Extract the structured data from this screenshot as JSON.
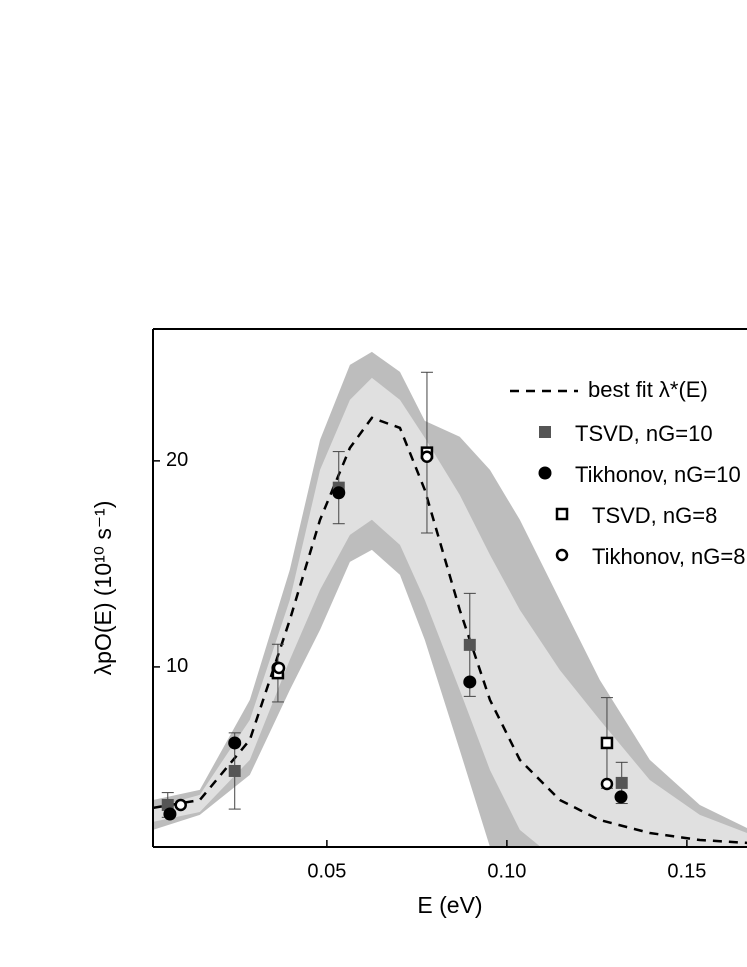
{
  "chart_data": {
    "type": "scatter",
    "x_label": "E  (eV)",
    "y_label": "λpO(E)  (10¹⁰ s⁻¹)",
    "xlim": [
      0.0017,
      0.1667
    ],
    "ylim": [
      1.26,
      26.4
    ],
    "xticks": [
      0.05,
      {
        "value": 0.1,
        "label": "0.10"
      },
      0.15
    ],
    "yticks": [
      10,
      20
    ],
    "bands": [
      {
        "color": "#bdbdbd",
        "x": [
          0.0017,
          0.0147,
          0.0286,
          0.0397,
          0.0481,
          0.0564,
          0.0625,
          0.0703,
          0.0772,
          0.0869,
          0.0953,
          0.1036,
          0.1147,
          0.1258,
          0.1397,
          0.1536,
          0.1667
        ],
        "upper": [
          3.54,
          4.03,
          8.4,
          14.71,
          21.02,
          24.66,
          25.29,
          24.32,
          21.94,
          21.17,
          19.56,
          17.14,
          13.25,
          9.37,
          5.49,
          3.3,
          2.18
        ],
        "lower": [
          2.09,
          2.82,
          4.76,
          8.88,
          11.8,
          15.1,
          15.68,
          14.47,
          11.31,
          5.97,
          1.26,
          0,
          0,
          0,
          0,
          0,
          0
        ]
      },
      {
        "color": "#e0e0e0",
        "x": [
          0.0017,
          0.0147,
          0.0286,
          0.0397,
          0.0481,
          0.0564,
          0.0625,
          0.0703,
          0.0772,
          0.0869,
          0.0953,
          0.1036,
          0.1147,
          0.1258,
          0.1397,
          0.1536,
          0.1667
        ],
        "upper": [
          3.16,
          3.79,
          7.43,
          13.25,
          19.56,
          22.96,
          24.03,
          22.96,
          21.12,
          18.35,
          15.44,
          12.77,
          9.85,
          7.43,
          4.51,
          2.82,
          1.94
        ],
        "lower": [
          2.48,
          2.96,
          5.49,
          10.34,
          13.74,
          16.41,
          17.14,
          15.92,
          13.25,
          8.88,
          5.0,
          2.09,
          0.5,
          0,
          0,
          0,
          0
        ]
      }
    ],
    "fit": {
      "name": "best fit λ*(E)",
      "color": "#000000",
      "x": [
        0.0017,
        0.0147,
        0.0286,
        0.0397,
        0.0481,
        0.0564,
        0.0625,
        0.0703,
        0.0772,
        0.0869,
        0.0953,
        0.1036,
        0.1147,
        0.1258,
        0.1397,
        0.1536,
        0.1667
      ],
      "values": [
        3.16,
        3.54,
        6.46,
        12.28,
        17.14,
        20.63,
        22.09,
        21.6,
        18.59,
        12.77,
        8.4,
        5.49,
        3.54,
        2.57,
        1.94,
        1.6,
        1.46
      ]
    },
    "series": [
      {
        "name": "TSVD, nG=10",
        "color": "#555555",
        "marker": "square",
        "x": [
          0.0058,
          0.0244,
          0.0364,
          0.0533,
          0.0897,
          0.1319
        ],
        "values": [
          3.3,
          4.95,
          9.7,
          18.7,
          11.07,
          4.37
        ],
        "errors": [
          0.6,
          1.85,
          1.4,
          1.75,
          2.5,
          1.0
        ]
      },
      {
        "name": "Tikhonov, nG=10",
        "color": "#000000",
        "marker": "circle",
        "x": [
          0.0064,
          0.0244,
          0.0364,
          0.0533,
          0.0897,
          0.1317
        ],
        "values": [
          2.86,
          6.31,
          9.95,
          18.45,
          9.27,
          3.69
        ]
      },
      {
        "name": "TSVD, nG=8",
        "color": "#000000",
        "marker": "open-square",
        "x": [
          0.0364,
          0.0778,
          0.1278
        ],
        "values": [
          9.7,
          20.4,
          6.31
        ],
        "errors": [
          null,
          3.9,
          2.2
        ]
      },
      {
        "name": "Tikhonov, nG=8",
        "color": "#000000",
        "marker": "open-circle",
        "x": [
          0.0094,
          0.0367,
          0.0778,
          0.1278
        ],
        "values": [
          3.3,
          9.95,
          20.2,
          4.32
        ]
      }
    ]
  }
}
